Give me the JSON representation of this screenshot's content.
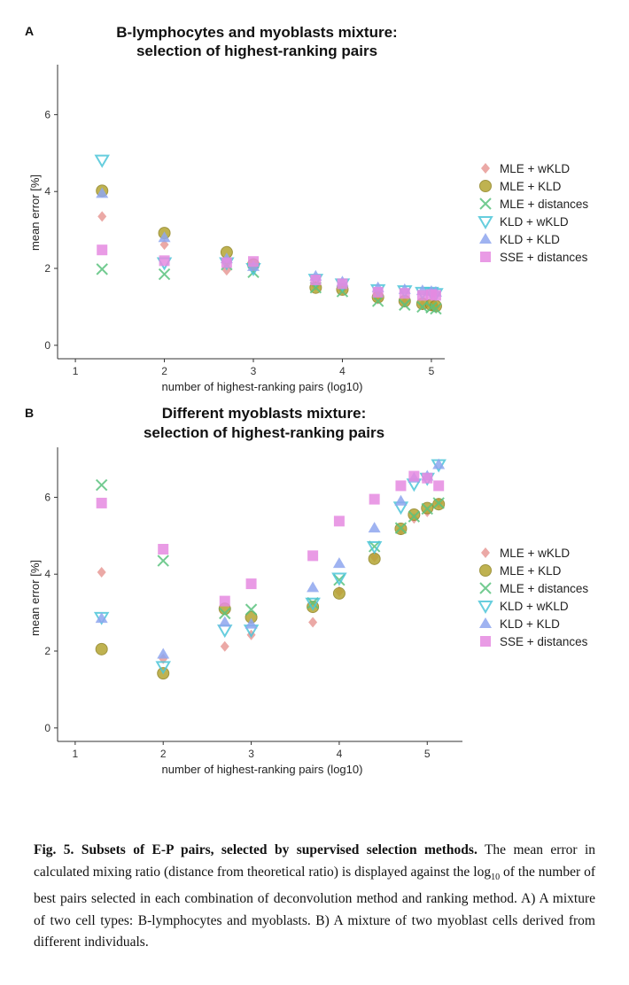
{
  "chart_data": [
    {
      "type": "scatter",
      "panel_label": "A",
      "title_line1": "B-lymphocytes and myoblasts mixture:",
      "title_line2": "selection of highest-ranking pairs",
      "xlabel": "number of highest-ranking pairs (log10)",
      "ylabel": "mean error [%]",
      "xlim": [
        0.8,
        5.15
      ],
      "ylim": [
        -0.35,
        7.3
      ],
      "x_ticks": [
        "1",
        "2",
        "3",
        "4",
        "5"
      ],
      "y_ticks": [
        "0",
        "2",
        "4",
        "6"
      ],
      "legend_position": "right",
      "grid": false,
      "series": [
        {
          "name": "MLE + wKLD",
          "marker": "diamond",
          "color": "#E89A96",
          "points": [
            [
              1.3,
              3.35
            ],
            [
              2.0,
              2.62
            ],
            [
              2.7,
              1.95
            ],
            [
              3.0,
              2.02
            ],
            [
              3.7,
              1.55
            ],
            [
              4.0,
              1.45
            ],
            [
              4.4,
              1.2
            ],
            [
              4.7,
              1.12
            ],
            [
              4.9,
              1.05
            ],
            [
              5.0,
              1.02
            ],
            [
              5.05,
              1.0
            ]
          ]
        },
        {
          "name": "MLE + KLD",
          "marker": "circle",
          "color": "#B5A532",
          "points": [
            [
              1.3,
              4.02
            ],
            [
              2.0,
              2.92
            ],
            [
              2.7,
              2.42
            ],
            [
              3.0,
              2.1
            ],
            [
              3.7,
              1.5
            ],
            [
              4.0,
              1.45
            ],
            [
              4.4,
              1.25
            ],
            [
              4.7,
              1.15
            ],
            [
              4.9,
              1.08
            ],
            [
              5.0,
              1.05
            ],
            [
              5.05,
              1.02
            ]
          ]
        },
        {
          "name": "MLE + distances",
          "marker": "x",
          "color": "#5BC27E",
          "points": [
            [
              1.3,
              1.98
            ],
            [
              2.0,
              1.85
            ],
            [
              2.7,
              2.1
            ],
            [
              3.0,
              1.9
            ],
            [
              3.7,
              1.5
            ],
            [
              4.0,
              1.4
            ],
            [
              4.4,
              1.15
            ],
            [
              4.7,
              1.05
            ],
            [
              4.9,
              1.0
            ],
            [
              5.0,
              0.98
            ],
            [
              5.05,
              0.95
            ]
          ]
        },
        {
          "name": "KLD + wKLD",
          "marker": "triangle-down",
          "color": "#4CC6D8",
          "points": [
            [
              1.3,
              4.82
            ],
            [
              2.0,
              2.15
            ],
            [
              2.7,
              2.15
            ],
            [
              3.0,
              2.0
            ],
            [
              3.7,
              1.72
            ],
            [
              4.0,
              1.6
            ],
            [
              4.4,
              1.45
            ],
            [
              4.7,
              1.42
            ],
            [
              4.9,
              1.38
            ],
            [
              5.0,
              1.38
            ],
            [
              5.05,
              1.35
            ]
          ]
        },
        {
          "name": "KLD + KLD",
          "marker": "triangle-up",
          "color": "#8EA6EE",
          "points": [
            [
              1.3,
              3.95
            ],
            [
              2.0,
              2.8
            ],
            [
              2.7,
              2.25
            ],
            [
              3.0,
              2.05
            ],
            [
              3.7,
              1.8
            ],
            [
              4.0,
              1.65
            ],
            [
              4.4,
              1.5
            ],
            [
              4.7,
              1.45
            ],
            [
              4.9,
              1.42
            ],
            [
              5.0,
              1.4
            ],
            [
              5.05,
              1.38
            ]
          ]
        },
        {
          "name": "SSE + distances",
          "marker": "square",
          "color": "#E58AE0",
          "points": [
            [
              1.3,
              2.48
            ],
            [
              2.0,
              2.2
            ],
            [
              2.7,
              2.15
            ],
            [
              3.0,
              2.18
            ],
            [
              3.7,
              1.7
            ],
            [
              4.0,
              1.6
            ],
            [
              4.4,
              1.38
            ],
            [
              4.7,
              1.35
            ],
            [
              4.9,
              1.3
            ],
            [
              5.0,
              1.32
            ],
            [
              5.05,
              1.3
            ]
          ]
        }
      ]
    },
    {
      "type": "scatter",
      "panel_label": "B",
      "title_line1": "Different myoblasts mixture:",
      "title_line2": "selection of highest-ranking pairs",
      "xlabel": "number of highest-ranking pairs (log10)",
      "ylabel": "mean error [%]",
      "xlim": [
        0.8,
        5.4
      ],
      "ylim": [
        -0.35,
        7.3
      ],
      "x_ticks": [
        "1",
        "2",
        "3",
        "4",
        "5"
      ],
      "y_ticks": [
        "0",
        "2",
        "4",
        "6"
      ],
      "legend_position": "right",
      "grid": false,
      "series": [
        {
          "name": "MLE + wKLD",
          "marker": "diamond",
          "color": "#E89A96",
          "points": [
            [
              1.3,
              4.05
            ],
            [
              2.0,
              1.8
            ],
            [
              2.7,
              2.12
            ],
            [
              3.0,
              2.42
            ],
            [
              3.7,
              2.75
            ],
            [
              4.0,
              3.55
            ],
            [
              4.4,
              4.45
            ],
            [
              4.7,
              5.15
            ],
            [
              4.85,
              5.45
            ],
            [
              5.0,
              5.62
            ],
            [
              5.13,
              5.85
            ]
          ]
        },
        {
          "name": "MLE + KLD",
          "marker": "circle",
          "color": "#B5A532",
          "points": [
            [
              1.3,
              2.05
            ],
            [
              2.0,
              1.42
            ],
            [
              2.7,
              3.1
            ],
            [
              3.0,
              2.88
            ],
            [
              3.7,
              3.15
            ],
            [
              4.0,
              3.5
            ],
            [
              4.4,
              4.4
            ],
            [
              4.7,
              5.18
            ],
            [
              4.85,
              5.55
            ],
            [
              5.0,
              5.72
            ],
            [
              5.13,
              5.82
            ]
          ]
        },
        {
          "name": "MLE + distances",
          "marker": "x",
          "color": "#5BC27E",
          "points": [
            [
              1.3,
              6.32
            ],
            [
              2.0,
              4.35
            ],
            [
              2.7,
              2.98
            ],
            [
              3.0,
              3.08
            ],
            [
              3.7,
              3.25
            ],
            [
              4.0,
              3.85
            ],
            [
              4.4,
              4.72
            ],
            [
              4.7,
              5.2
            ],
            [
              4.85,
              5.5
            ],
            [
              5.0,
              5.7
            ],
            [
              5.13,
              5.85
            ]
          ]
        },
        {
          "name": "KLD + wKLD",
          "marker": "triangle-down",
          "color": "#4CC6D8",
          "points": [
            [
              1.3,
              2.88
            ],
            [
              2.0,
              1.6
            ],
            [
              2.7,
              2.55
            ],
            [
              3.0,
              2.55
            ],
            [
              3.7,
              3.25
            ],
            [
              4.0,
              3.9
            ],
            [
              4.4,
              4.72
            ],
            [
              4.7,
              5.75
            ],
            [
              4.85,
              6.35
            ],
            [
              5.0,
              6.5
            ],
            [
              5.13,
              6.85
            ]
          ]
        },
        {
          "name": "KLD + KLD",
          "marker": "triangle-up",
          "color": "#8EA6EE",
          "points": [
            [
              1.3,
              2.85
            ],
            [
              2.0,
              1.92
            ],
            [
              2.7,
              2.75
            ],
            [
              3.0,
              2.7
            ],
            [
              3.7,
              3.65
            ],
            [
              4.0,
              4.28
            ],
            [
              4.4,
              5.2
            ],
            [
              4.7,
              5.9
            ],
            [
              4.85,
              6.5
            ],
            [
              5.0,
              6.55
            ],
            [
              5.13,
              6.85
            ]
          ]
        },
        {
          "name": "SSE + distances",
          "marker": "square",
          "color": "#E58AE0",
          "points": [
            [
              1.3,
              5.85
            ],
            [
              2.0,
              4.65
            ],
            [
              2.7,
              3.3
            ],
            [
              3.0,
              3.75
            ],
            [
              3.7,
              4.48
            ],
            [
              4.0,
              5.38
            ],
            [
              4.4,
              5.95
            ],
            [
              4.7,
              6.3
            ],
            [
              4.85,
              6.55
            ],
            [
              5.0,
              6.5
            ],
            [
              5.13,
              6.3
            ]
          ]
        }
      ]
    }
  ],
  "caption": {
    "bold_title": "Fig. 5. Subsets of E-P pairs, selected by supervised selection methods.",
    "text_before_sub": " The mean error in calculated mixing ratio (distance from theoretical ratio) is displayed against the log",
    "sub": "10",
    "text_after_sub": " of the number of best pairs selected in each combination of deconvolution method and ranking method. A) A mixture of two cell types: B-lymphocytes and myoblasts. B) A mixture of two myoblast cells derived from different individuals."
  }
}
